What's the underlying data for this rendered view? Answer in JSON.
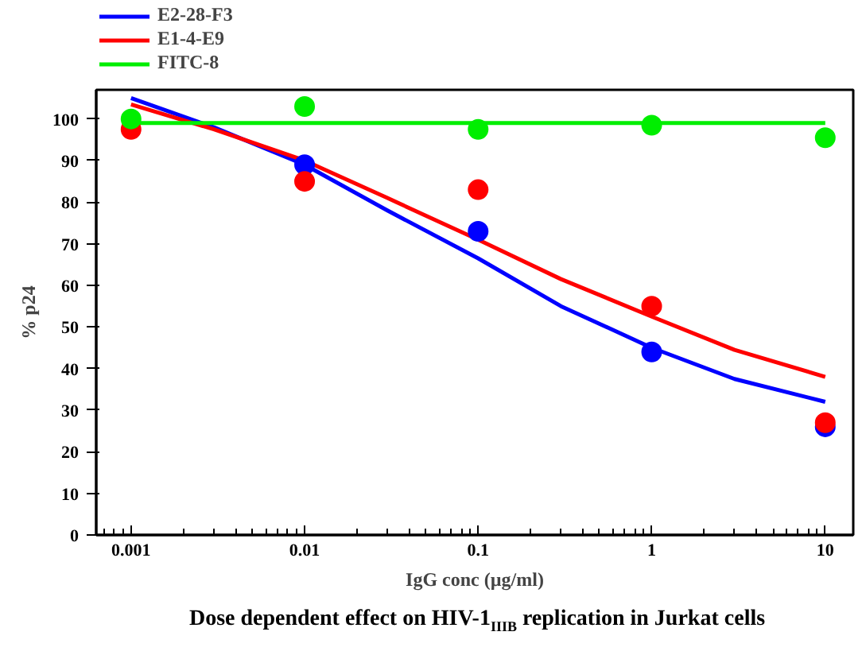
{
  "chart_data": {
    "type": "scatter",
    "title": "Dose dependent effect on HIV-1$_{IIIB}$ replication in Jurkat cells",
    "xlabel": "IgG conc (µg/ml)",
    "ylabel": "% p24",
    "log": "x",
    "xlim": [
      0.00063,
      14.5
    ],
    "ylim": [
      0,
      107
    ],
    "xticks": [
      0.001,
      0.01,
      0.1,
      1,
      10
    ],
    "yticks": [
      0,
      10,
      20,
      30,
      40,
      50,
      60,
      70,
      80,
      90,
      100
    ],
    "grid": false,
    "legend": "top left",
    "series": [
      {
        "type": "line",
        "name": "E2-28-F3",
        "color": "#0000ff",
        "x": [
          0.001,
          0.003,
          0.01,
          0.03,
          0.1,
          0.3,
          1,
          3,
          10
        ],
        "values": [
          105,
          98,
          89,
          78,
          66.5,
          55,
          45,
          37.5,
          32
        ]
      },
      {
        "type": "line",
        "name": "E1-4-E9",
        "color": "#ff0000",
        "x": [
          0.001,
          0.003,
          0.01,
          0.03,
          0.1,
          0.3,
          1,
          3,
          10
        ],
        "values": [
          103.5,
          97.5,
          90,
          81,
          71,
          61.5,
          52.5,
          44.5,
          38
        ]
      },
      {
        "type": "line",
        "name": "FITC-8",
        "color": "#00ee00",
        "x": [
          0.001,
          10
        ],
        "values": [
          99,
          99
        ]
      },
      {
        "color": "#0000ff",
        "marker": "circle",
        "x": [
          0.01,
          0.1,
          1,
          10
        ],
        "values": [
          89,
          73,
          44,
          26
        ]
      },
      {
        "color": "#ff0000",
        "marker": "circle",
        "x": [
          0.001,
          0.01,
          0.1,
          1,
          10
        ],
        "values": [
          97.5,
          85,
          83,
          55,
          27
        ]
      },
      {
        "color": "#00ee00",
        "marker": "circle",
        "x": [
          0.001,
          0.01,
          0.1,
          1,
          10
        ],
        "values": [
          100,
          103,
          97.5,
          98.5,
          95.5
        ]
      }
    ]
  }
}
